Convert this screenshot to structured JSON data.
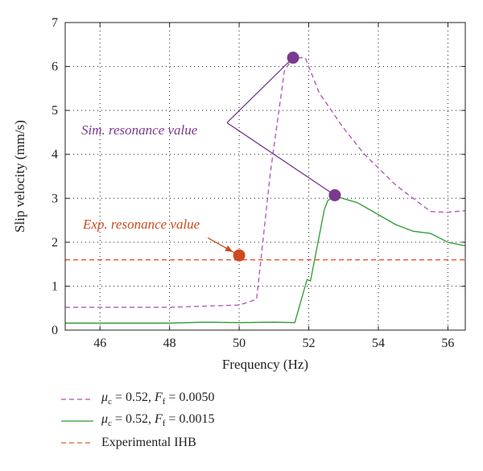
{
  "chart_data": {
    "type": "line",
    "xlabel": "Frequency (Hz)",
    "ylabel": "Slip velocity (mm/s)",
    "xlim": [
      45,
      56.5
    ],
    "ylim": [
      0,
      7
    ],
    "xticks": [
      46,
      48,
      50,
      52,
      54,
      56
    ],
    "yticks": [
      0,
      1,
      2,
      3,
      4,
      5,
      6,
      7
    ],
    "grid": "dotted",
    "series": [
      {
        "id": "sim_ff_0050",
        "mu_c": "0.52",
        "f_f": "0.0050",
        "color": "#b04fb8",
        "style": "dashed",
        "x": [
          45,
          48,
          50,
          50.5,
          50.9,
          51.3,
          51.55,
          51.9,
          52.3,
          53,
          53.6,
          54.5,
          55.5,
          56,
          56.5
        ],
        "y": [
          0.52,
          0.52,
          0.57,
          0.7,
          3.6,
          5.9,
          6.2,
          6.2,
          5.4,
          4.6,
          4.0,
          3.3,
          2.7,
          2.68,
          2.72
        ]
      },
      {
        "id": "sim_ff_0015",
        "mu_c": "0.52",
        "f_f": "0.0015",
        "color": "#2e9a2e",
        "style": "solid",
        "x": [
          45,
          48,
          49,
          50,
          51,
          51.6,
          51.95,
          52.05,
          52.45,
          52.55,
          52.75,
          53.4,
          54.5,
          55,
          55.5,
          56,
          56.5
        ],
        "y": [
          0.16,
          0.16,
          0.18,
          0.17,
          0.18,
          0.17,
          1.15,
          1.12,
          2.75,
          2.95,
          3.05,
          2.9,
          2.4,
          2.25,
          2.2,
          2.0,
          1.92
        ]
      },
      {
        "id": "exp_ihb",
        "label": "Experimental IHB",
        "color": "#e05a2b",
        "style": "dashed",
        "x": [
          45,
          56.5
        ],
        "y": [
          1.6,
          1.6
        ]
      }
    ],
    "markers": [
      {
        "series": "sim_ff_0050",
        "x": 51.55,
        "y": 6.2,
        "color": "#7a3a8e"
      },
      {
        "series": "sim_ff_0015",
        "x": 52.75,
        "y": 3.07,
        "color": "#7a3a8e"
      },
      {
        "series": "exp_ihb",
        "x": 50.0,
        "y": 1.7,
        "color": "#cc4a1e"
      }
    ],
    "annotations": [
      {
        "text": "Sim. resonance value",
        "color": "#7a3a8e",
        "anchor": {
          "x": 49.65,
          "y": 4.72
        },
        "targets": [
          {
            "x": 51.55,
            "y": 6.2
          },
          {
            "x": 52.75,
            "y": 3.07
          }
        ]
      },
      {
        "text": "Exp. resonance value",
        "color": "#cc4a1e",
        "anchor": {
          "x": 49.1,
          "y": 2.1
        },
        "targets": [
          {
            "x": 50.0,
            "y": 1.7
          }
        ]
      }
    ]
  },
  "legend": {
    "mu_symbol": "μ",
    "mu_sub": "c",
    "f_symbol": "F",
    "f_sub": "f"
  }
}
